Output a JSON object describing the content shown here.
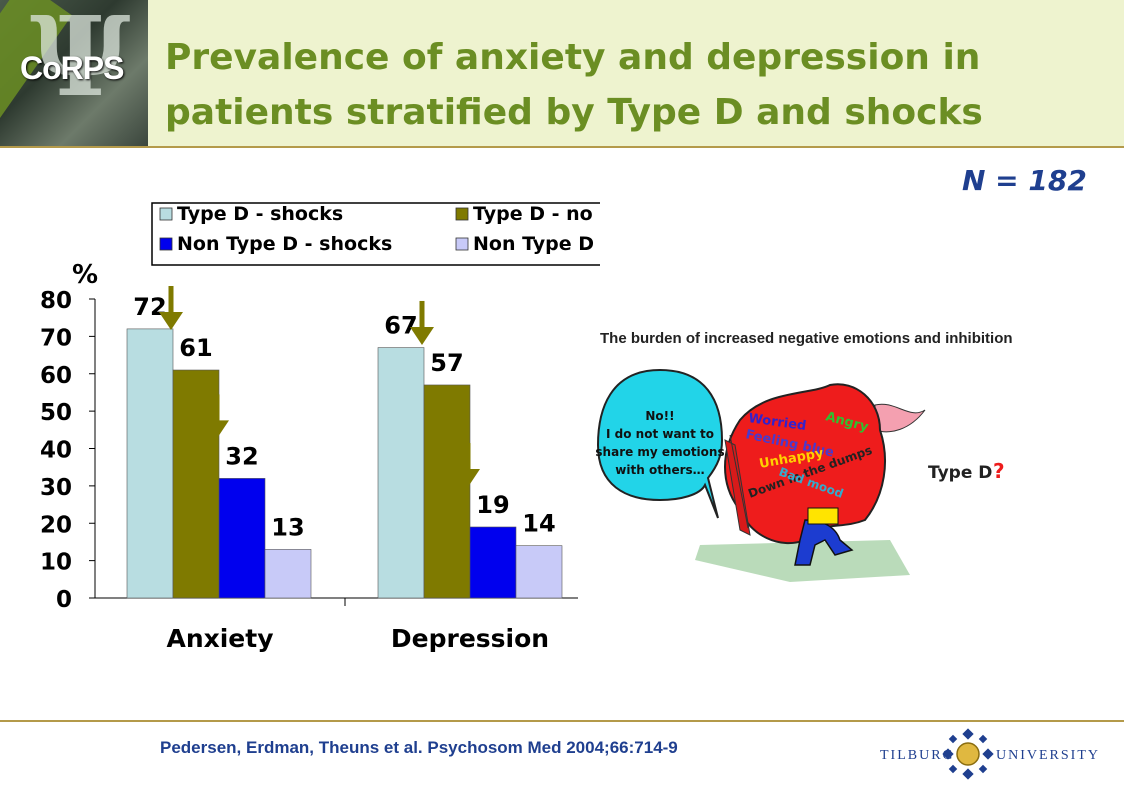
{
  "header": {
    "logo_text": "CoRPS",
    "title": "Prevalence of anxiety and depression in patients stratified by Type D and shocks"
  },
  "n_label": "N = 182",
  "cartoon": {
    "title": "The burden of increased negative emotions and inhibition",
    "bubble_lines": [
      "No!!",
      "I do not want to",
      "share my emotions",
      "with others…"
    ],
    "emotions": [
      "Worried",
      "Angry",
      "Feeling blue",
      "Unhappy",
      "Down in the dumps",
      "Bad mood"
    ],
    "label": "Type D",
    "question": "?"
  },
  "footer": {
    "citation": "Pedersen, Erdman, Theuns et al. Psychosom Med 2004;66:714-9",
    "university_left": "TILBURG",
    "university_right": "UNIVERSITY"
  },
  "colors": {
    "title_green": "#6b8e23",
    "navy": "#1f3f8f",
    "series": [
      "#b8dde1",
      "#7f7a00",
      "#0000ee",
      "#c8caf8"
    ],
    "arrow": "#7f7a00"
  },
  "chart_data": {
    "type": "bar",
    "ylabel": "%",
    "ylim": [
      0,
      80
    ],
    "yticks": [
      0,
      10,
      20,
      30,
      40,
      50,
      60,
      70,
      80
    ],
    "categories": [
      "Anxiety",
      "Depression"
    ],
    "series": [
      {
        "name": "Type D - shocks",
        "values": [
          72,
          67
        ]
      },
      {
        "name": "Type D - no shocks",
        "values": [
          61,
          57
        ]
      },
      {
        "name": "Non Type D - shocks",
        "values": [
          32,
          19
        ]
      },
      {
        "name": "Non Type D - no shocks",
        "values": [
          13,
          14
        ]
      }
    ],
    "data_labels": true,
    "legend_position": "top",
    "grid": false
  }
}
